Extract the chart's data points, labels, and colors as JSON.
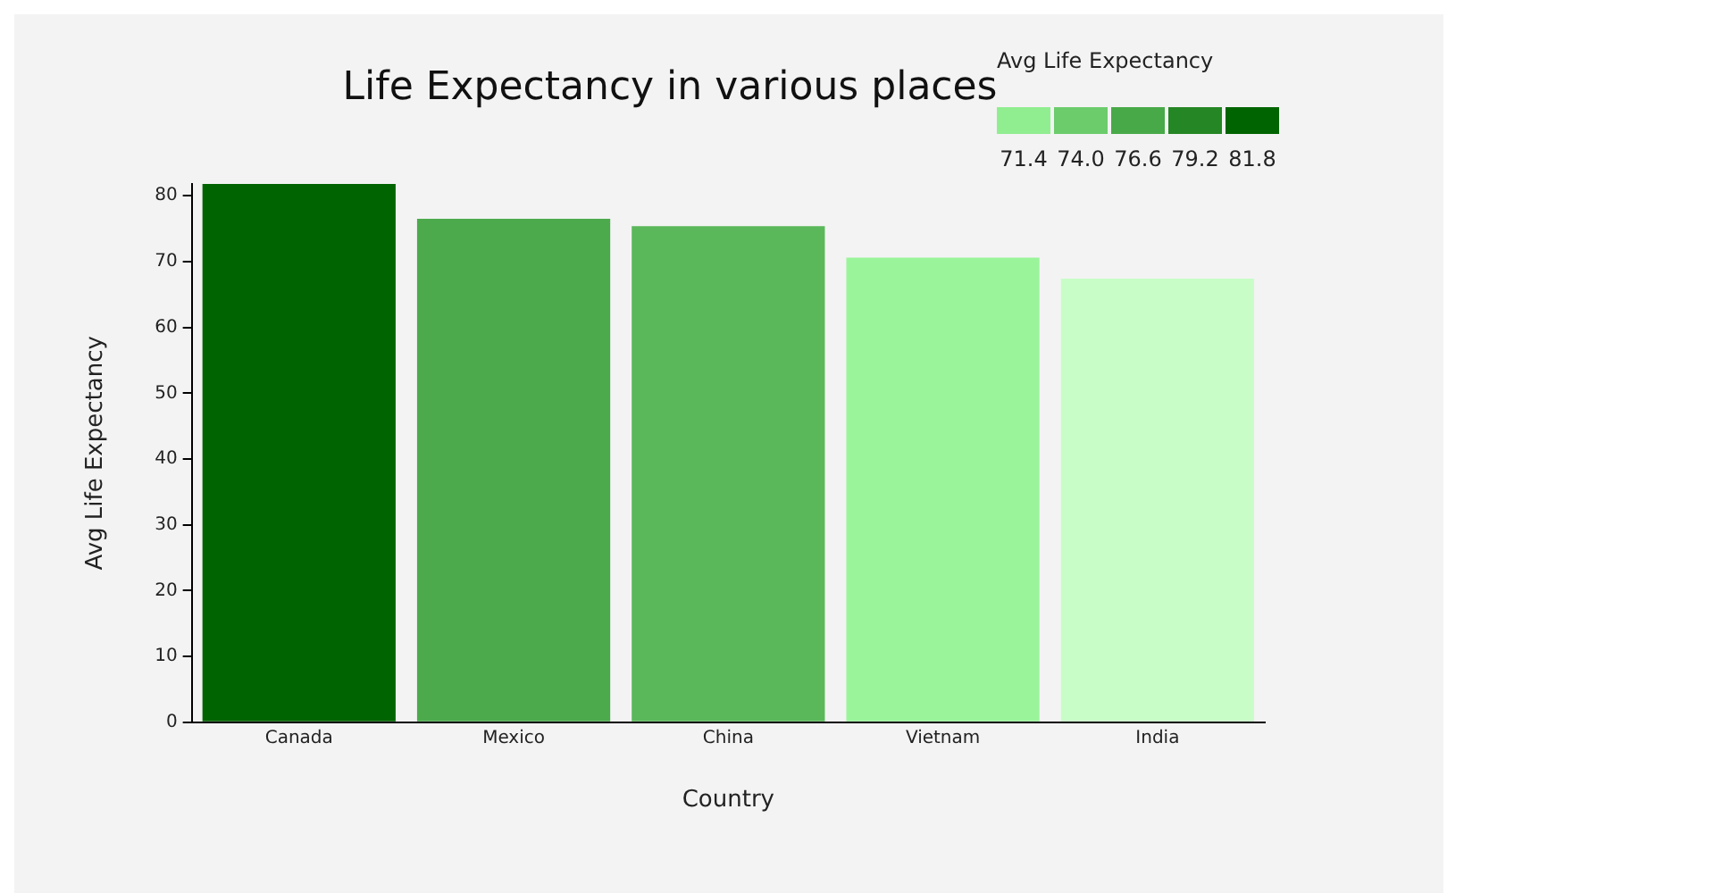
{
  "chart_data": {
    "type": "bar",
    "title": "Life Expectancy in various places",
    "xlabel": "Country",
    "ylabel": "Avg Life Expectancy",
    "categories": [
      "Canada",
      "Mexico",
      "China",
      "Vietnam",
      "India"
    ],
    "values": [
      81.8,
      76.5,
      75.4,
      70.6,
      67.4
    ],
    "colors": [
      "#006400",
      "#4caa4c",
      "#5ab85a",
      "#9af59a",
      "#c8fdc8"
    ],
    "ylim": [
      0,
      81.8
    ],
    "yticks": [
      0,
      10,
      20,
      30,
      40,
      50,
      60,
      70,
      80
    ],
    "grid": false,
    "clabel": "Avg Life Expectancy",
    "clim": [
      70.1,
      83.1
    ],
    "cticks": [
      71.4,
      {
        "value": 74,
        "label": "74.0"
      },
      76.6,
      79.2,
      81.8
    ]
  }
}
